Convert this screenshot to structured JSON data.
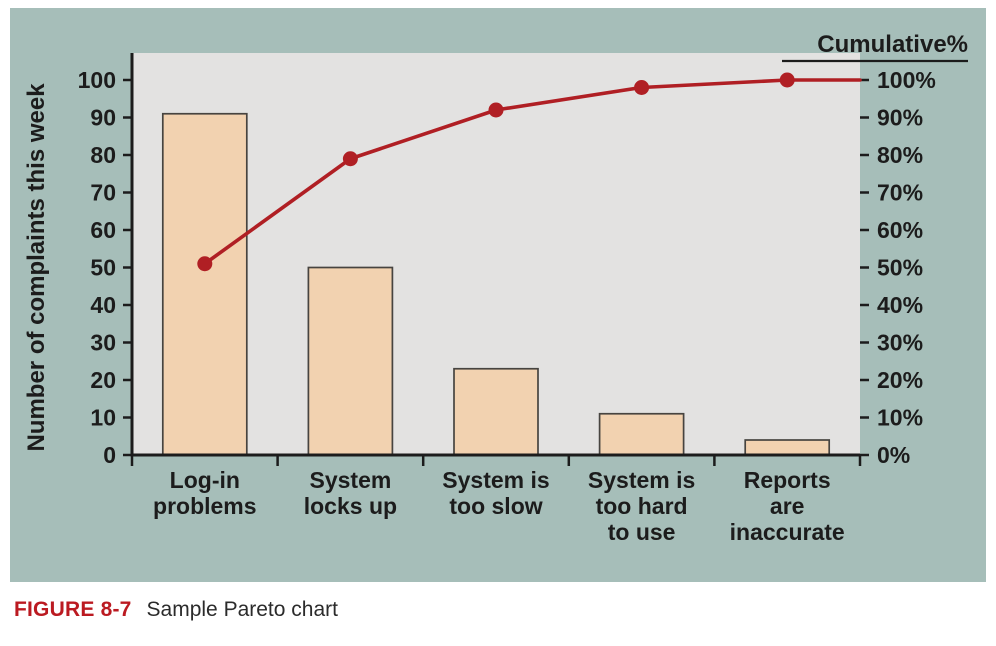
{
  "figure": {
    "caption_label": "FIGURE 8-7",
    "caption_text": "Sample Pareto chart"
  },
  "chart_data": {
    "type": "bar",
    "variant": "pareto (bar + cumulative percent line)",
    "title": "",
    "ylabel_left": "Number of complaints this week",
    "ylabel_right": "Cumulative%",
    "categories": [
      [
        "Log-in",
        "problems"
      ],
      [
        "System",
        "locks up"
      ],
      [
        "System is",
        "too slow"
      ],
      [
        "System is",
        "too hard",
        "to use"
      ],
      [
        "Reports",
        "are",
        "inaccurate"
      ]
    ],
    "series": [
      {
        "name": "Number of complaints this week",
        "kind": "bar",
        "axis": "left",
        "values": [
          91,
          50,
          23,
          11,
          4
        ]
      },
      {
        "name": "Cumulative%",
        "kind": "line",
        "axis": "right",
        "values": [
          51,
          79,
          92,
          98,
          100
        ]
      }
    ],
    "left_axis": {
      "min": 0,
      "max": 100,
      "ticks": [
        0,
        10,
        20,
        30,
        40,
        50,
        60,
        70,
        80,
        90,
        100
      ]
    },
    "right_axis": {
      "min": 0,
      "max": 100,
      "tick_labels": [
        "0%",
        "10%",
        "20%",
        "30%",
        "40%",
        "50%",
        "60%",
        "70%",
        "80%",
        "90%",
        "100%"
      ]
    },
    "grid": false,
    "legend": "none",
    "colors": {
      "panel_background": "#a6beb9",
      "plot_background": "#e3e2e1",
      "bar_fill": "#f2d2b0",
      "bar_stroke": "#474440",
      "line": "#b01f24",
      "marker": "#b01f24",
      "axis": "#1c1c1c",
      "text": "#1c1c1c",
      "caption_label": "#bb1a21"
    }
  }
}
